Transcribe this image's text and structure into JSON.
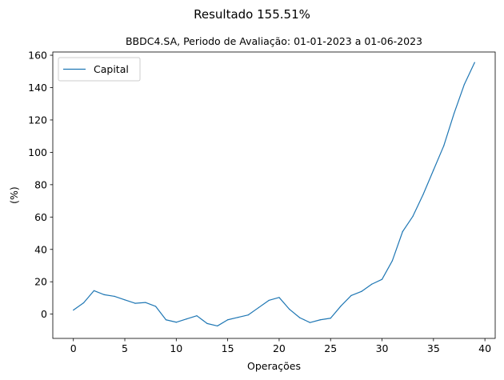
{
  "header": {
    "suptitle": "Resultado 155.51%",
    "subtitle": "BBDC4.SA, Periodo de Avaliação: 01-01-2023 a 01-06-2023"
  },
  "colors": {
    "series": "#1f77b4",
    "axes": "#000000",
    "background": "#ffffff"
  },
  "chart_data": {
    "type": "line",
    "xlabel": "Operações",
    "ylabel": "(%)",
    "xlim": [
      -2,
      41
    ],
    "ylim": [
      -15,
      162
    ],
    "xticks": [
      0,
      5,
      10,
      15,
      20,
      25,
      30,
      35,
      40
    ],
    "yticks": [
      0,
      20,
      40,
      60,
      80,
      100,
      120,
      140,
      160
    ],
    "grid": false,
    "legend": {
      "position": "upper-left",
      "entries": [
        "Capital"
      ]
    },
    "series": [
      {
        "name": "Capital",
        "x": [
          0,
          1,
          2,
          3,
          4,
          5,
          6,
          7,
          8,
          9,
          10,
          11,
          12,
          13,
          14,
          15,
          16,
          17,
          18,
          19,
          20,
          21,
          22,
          23,
          24,
          25,
          26,
          27,
          28,
          29,
          30,
          31,
          32,
          33,
          34,
          35,
          36,
          37,
          38,
          39
        ],
        "values": [
          2.5,
          7.0,
          14.5,
          12.0,
          11.0,
          8.8,
          6.7,
          7.2,
          4.8,
          -3.5,
          -5.0,
          -3.0,
          -1.0,
          -5.8,
          -7.3,
          -3.5,
          -2.0,
          -0.5,
          4.0,
          8.5,
          10.3,
          3.0,
          -2.2,
          -5.2,
          -3.5,
          -2.5,
          5.0,
          11.5,
          14.0,
          18.5,
          21.5,
          33.0,
          51.0,
          60.5,
          74.0,
          89.0,
          104.0,
          124.0,
          142.0,
          155.5
        ]
      }
    ]
  }
}
